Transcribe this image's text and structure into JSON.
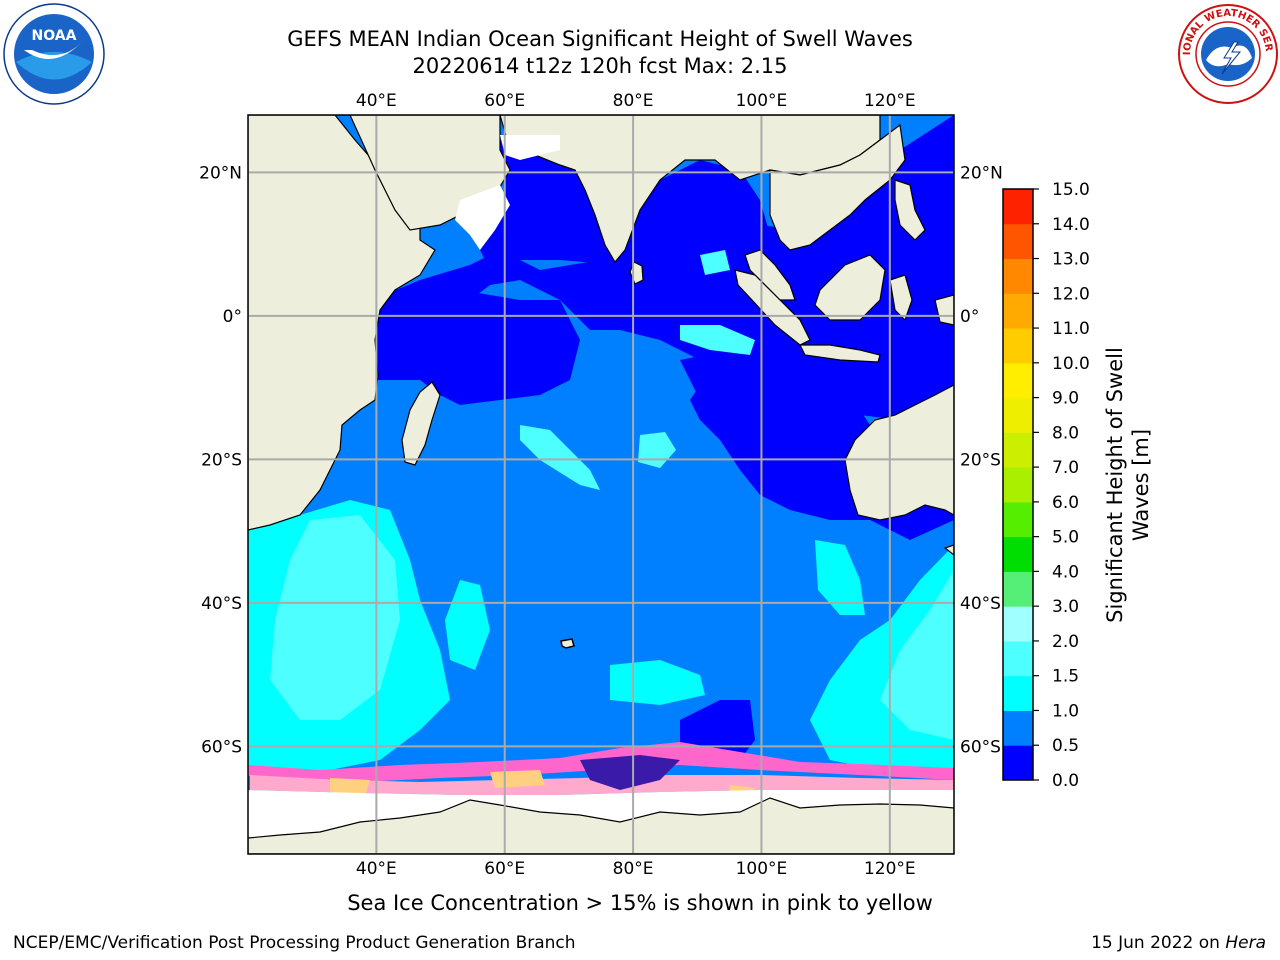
{
  "title_line1": "GEFS MEAN Indian Ocean Significant Height of Swell Waves",
  "title_line2": "20220614 t12z 120h fcst   Max: 2.15",
  "map": {
    "lon_range": [
      20,
      130
    ],
    "lat_range": [
      -75,
      28
    ],
    "lon_ticks": [
      "40°E",
      "60°E",
      "80°E",
      "100°E",
      "120°E"
    ],
    "lat_ticks": [
      "20°N",
      "0°",
      "20°S",
      "40°S",
      "60°S"
    ],
    "lon_values": [
      40,
      60,
      80,
      100,
      120
    ],
    "lat_values": [
      20,
      0,
      -20,
      -40,
      -60
    ],
    "colors": {
      "land": "#eeeedd",
      "ocean_0_0.5": "#0000ff",
      "ocean_0.5_1.0": "#0080ff",
      "ocean_1.0_1.5": "#00ffff",
      "ocean_1.5_2.0": "#4dffff",
      "ice": "#ffffff",
      "sea_ice_edge": "#ff66cc",
      "sea_ice_mid": "#ffaacc",
      "sea_ice_high": "#ffd080",
      "grid": "#aaaaaa"
    }
  },
  "colorbar": {
    "label_line1": "Significant Height of Swell",
    "label_line2": "Waves [m]",
    "ticks": [
      "0.0",
      "0.5",
      "1.0",
      "1.5",
      "2.0",
      "3.0",
      "4.0",
      "5.0",
      "6.0",
      "7.0",
      "8.0",
      "9.0",
      "10.0",
      "11.0",
      "12.0",
      "13.0",
      "14.0",
      "15.0"
    ],
    "colors": [
      "#0000ff",
      "#0080ff",
      "#00ffff",
      "#4dffff",
      "#a0ffff",
      "#55ee77",
      "#00dd00",
      "#55ee00",
      "#aaee00",
      "#ccee00",
      "#eeee00",
      "#ffee00",
      "#ffcc00",
      "#ffaa00",
      "#ff8800",
      "#ff5500",
      "#ff2200",
      "#ff0000"
    ]
  },
  "footer": {
    "note": "Sea Ice Concentration > 15% is shown in pink to yellow",
    "left": "NCEP/EMC/Verification Post Processing Product Generation Branch",
    "right_prefix": "15 Jun 2022 on ",
    "right_host": "Hera"
  },
  "logos": {
    "left": "noaa-logo",
    "right": "nws-logo",
    "left_text": "NOAA",
    "right_text": "NATIONAL WEATHER SERVICE"
  }
}
